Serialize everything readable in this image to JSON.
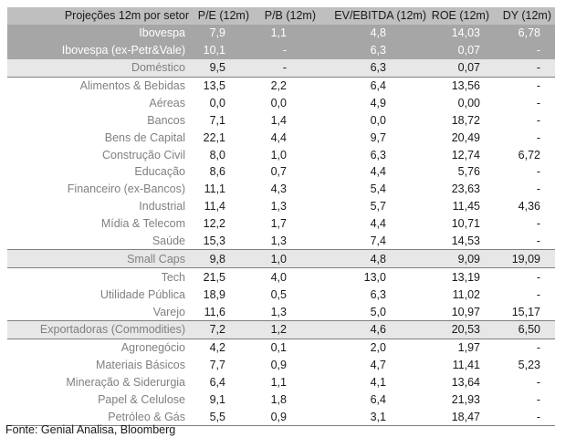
{
  "header": [
    "Projeções 12m por setor",
    "P/E (12m)",
    "P/B (12m)",
    "EV/EBITDA (12m)",
    "ROE (12m)",
    "DY (12m)"
  ],
  "rows": [
    {
      "label": "Ibovespa",
      "pe": "7,9",
      "pb": "1,1",
      "ev": "4,8",
      "roe": "14,03",
      "dy": "6,78",
      "style": "dark"
    },
    {
      "label": "Ibovespa (ex-Petr&Vale)",
      "pe": "10,1",
      "pb": "-",
      "ev": "6,3",
      "roe": "0,07",
      "dy": "-",
      "style": "dark"
    },
    {
      "label": "Doméstico",
      "pe": "9,5",
      "pb": "-",
      "ev": "6,3",
      "roe": "0,07",
      "dy": "-",
      "style": "light"
    },
    {
      "label": "Alimentos & Bebidas",
      "pe": "13,5",
      "pb": "2,2",
      "ev": "6,4",
      "roe": "13,56",
      "dy": "-",
      "style": "sep"
    },
    {
      "label": "Aéreas",
      "pe": "0,0",
      "pb": "0,0",
      "ev": "4,9",
      "roe": "0,00",
      "dy": "-",
      "style": ""
    },
    {
      "label": "Bancos",
      "pe": "7,1",
      "pb": "1,4",
      "ev": "0,0",
      "roe": "18,72",
      "dy": "-",
      "style": ""
    },
    {
      "label": "Bens de Capital",
      "pe": "22,1",
      "pb": "4,4",
      "ev": "9,7",
      "roe": "20,49",
      "dy": "-",
      "style": ""
    },
    {
      "label": "Construção Civil",
      "pe": "8,0",
      "pb": "1,0",
      "ev": "6,3",
      "roe": "12,74",
      "dy": "6,72",
      "style": ""
    },
    {
      "label": "Educação",
      "pe": "8,6",
      "pb": "0,7",
      "ev": "4,4",
      "roe": "5,76",
      "dy": "-",
      "style": ""
    },
    {
      "label": "Financeiro (ex-Bancos)",
      "pe": "11,1",
      "pb": "4,3",
      "ev": "5,4",
      "roe": "23,63",
      "dy": "-",
      "style": ""
    },
    {
      "label": "Industrial",
      "pe": "11,4",
      "pb": "1,3",
      "ev": "5,7",
      "roe": "11,45",
      "dy": "4,36",
      "style": ""
    },
    {
      "label": "Mídia & Telecom",
      "pe": "12,2",
      "pb": "1,7",
      "ev": "4,4",
      "roe": "10,71",
      "dy": "-",
      "style": ""
    },
    {
      "label": "Saúde",
      "pe": "15,3",
      "pb": "1,3",
      "ev": "7,4",
      "roe": "14,53",
      "dy": "-",
      "style": ""
    },
    {
      "label": "Small Caps",
      "pe": "9,8",
      "pb": "1,0",
      "ev": "4,8",
      "roe": "9,09",
      "dy": "19,09",
      "style": "light sep"
    },
    {
      "label": "Tech",
      "pe": "21,5",
      "pb": "4,0",
      "ev": "13,0",
      "roe": "13,19",
      "dy": "-",
      "style": "sep"
    },
    {
      "label": "Utilidade Pública",
      "pe": "18,9",
      "pb": "0,5",
      "ev": "6,3",
      "roe": "11,02",
      "dy": "-",
      "style": ""
    },
    {
      "label": "Varejo",
      "pe": "11,6",
      "pb": "1,3",
      "ev": "5,0",
      "roe": "10,97",
      "dy": "15,17",
      "style": ""
    },
    {
      "label": "Exportadoras (Commodities)",
      "pe": "7,2",
      "pb": "1,2",
      "ev": "4,6",
      "roe": "20,53",
      "dy": "6,50",
      "style": "light sep"
    },
    {
      "label": "Agronegócio",
      "pe": "4,2",
      "pb": "0,1",
      "ev": "2,0",
      "roe": "1,97",
      "dy": "-",
      "style": "sep"
    },
    {
      "label": "Materiais Básicos",
      "pe": "7,7",
      "pb": "0,9",
      "ev": "4,7",
      "roe": "11,41",
      "dy": "5,23",
      "style": ""
    },
    {
      "label": "Mineração & Siderurgia",
      "pe": "6,4",
      "pb": "1,1",
      "ev": "4,1",
      "roe": "13,64",
      "dy": "-",
      "style": ""
    },
    {
      "label": "Papel & Celulose",
      "pe": "9,1",
      "pb": "1,8",
      "ev": "6,4",
      "roe": "21,93",
      "dy": "-",
      "style": ""
    },
    {
      "label": "Petróleo & Gás",
      "pe": "5,5",
      "pb": "0,9",
      "ev": "3,1",
      "roe": "18,47",
      "dy": "-",
      "style": "sepbot"
    }
  ],
  "source": "Fonte: Genial Analisa, Bloomberg"
}
